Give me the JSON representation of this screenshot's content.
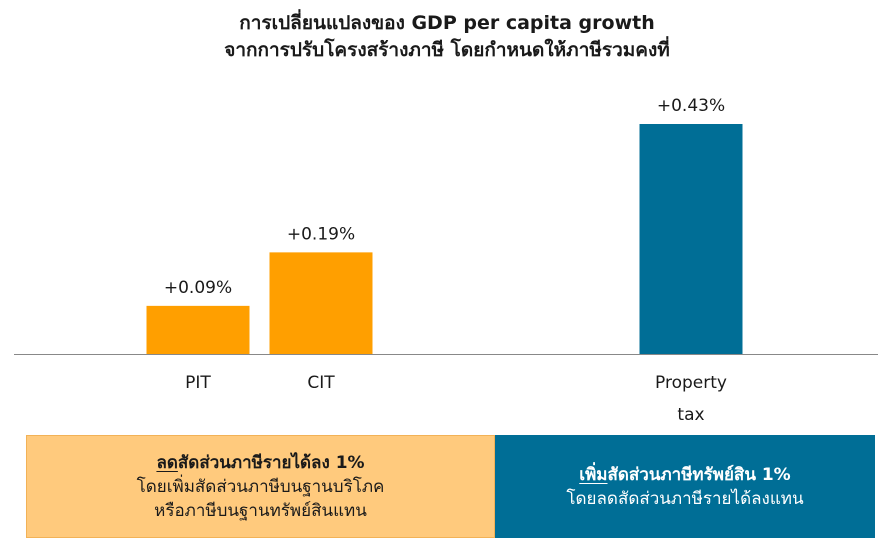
{
  "title": {
    "line1": "การเปลี่ยนแปลงของ GDP per capita growth",
    "line2": "จากการปรับโครงสร้างภาษี โดยกำหนดให้ภาษีรวมคงที่"
  },
  "colors": {
    "orange": "#FF9F00",
    "blue": "#006E96",
    "light_orange": "#FFCA7D",
    "axis": "#888888"
  },
  "chart_data": {
    "type": "bar",
    "categories": [
      "PIT",
      "CIT",
      "Property tax"
    ],
    "category_label_lines": [
      [
        "PIT"
      ],
      [
        "CIT"
      ],
      [
        "Property",
        "tax"
      ]
    ],
    "values": [
      0.09,
      0.19,
      0.43
    ],
    "data_labels": [
      "+0.09%",
      "+0.19%",
      "+0.43%"
    ],
    "bar_colors": [
      "#FF9F00",
      "#FF9F00",
      "#006E96"
    ],
    "ylim": [
      0,
      0.43
    ],
    "grid": false,
    "title": "การเปลี่ยนแปลงของ GDP per capita growth จากการปรับโครงสร้างภาษี โดยกำหนดให้ภาษีรวมคงที่",
    "xlabel": "",
    "ylabel": ""
  },
  "panels": {
    "left": {
      "head_underlined": "ลด",
      "head_rest": "สัดส่วนภาษีรายได้ลง 1%",
      "line2": "โดยเพิ่มสัดส่วนภาษีบนฐานบริโภค",
      "line3": "หรือภาษีบนฐานทรัพย์สินแทน"
    },
    "right": {
      "head_underlined": "เพิ่ม",
      "head_rest": "สัดส่วนภาษีทรัพย์สิน 1%",
      "line2": "โดยลดสัดส่วนภาษีรายได้ลงแทน"
    }
  }
}
